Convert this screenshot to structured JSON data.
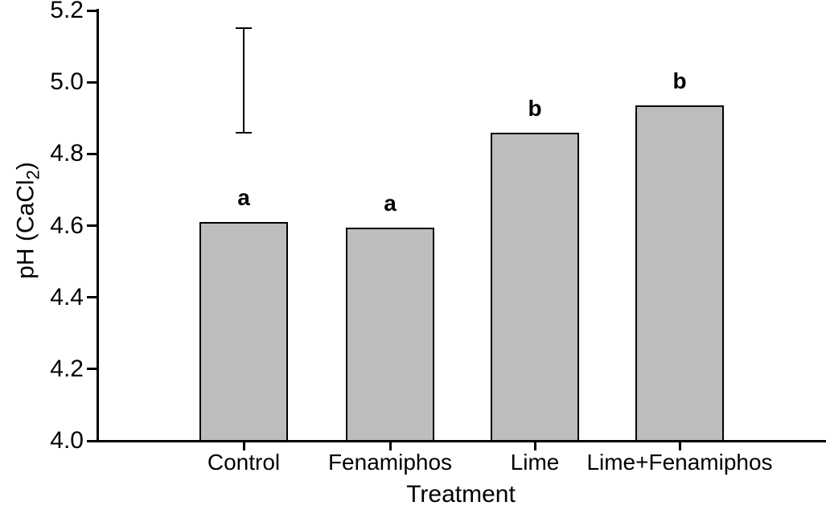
{
  "chart_data": {
    "type": "bar",
    "title": "",
    "xlabel": "Treatment",
    "ylabel": "pH (CaCl2)",
    "ylabel_parts": {
      "main": "pH (CaCl",
      "sub": "2",
      "close": ")"
    },
    "categories": [
      "Control",
      "Fenamiphos",
      "Lime",
      "Lime+Fenamiphos"
    ],
    "values": [
      4.61,
      4.595,
      4.86,
      4.935
    ],
    "significance_letters": [
      "a",
      "a",
      "b",
      "b"
    ],
    "ylim": [
      4.0,
      5.2
    ],
    "yticks": [
      "4.0",
      "4.2",
      "4.4",
      "4.6",
      "4.8",
      "5.0",
      "5.2"
    ],
    "error_bar": {
      "category": "Control",
      "low": 4.86,
      "high": 5.15,
      "meaning": "lsd-bar"
    },
    "bar_fill": "#bdbdbd",
    "bar_border": "#000000",
    "grid": false,
    "legend": false
  }
}
